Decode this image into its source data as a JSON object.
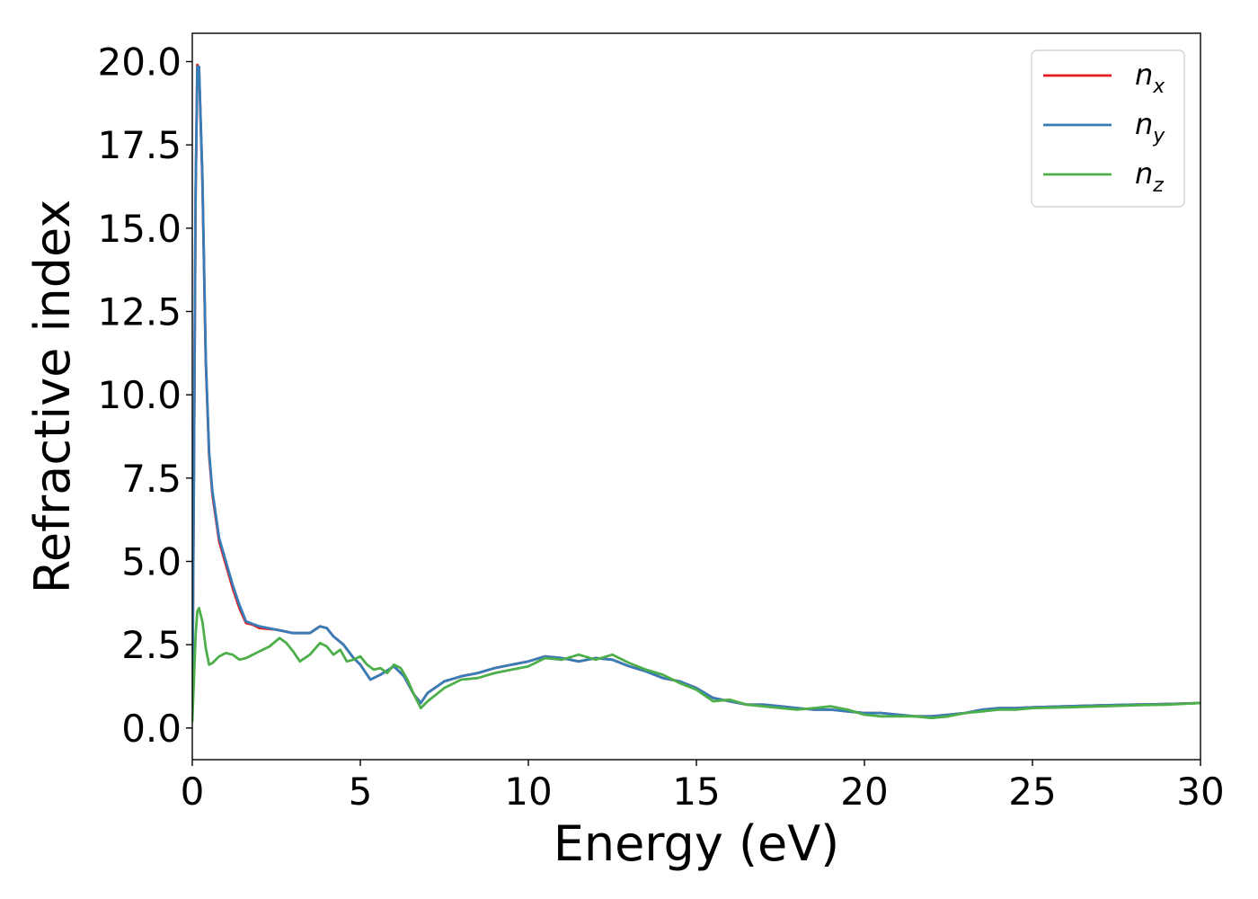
{
  "chart_data": {
    "type": "line",
    "title": "",
    "xlabel": "Energy (eV)",
    "ylabel": "Refractive index",
    "xlim": [
      0,
      30
    ],
    "ylim": [
      -0.95,
      20.85
    ],
    "xticks": [
      0,
      5,
      10,
      15,
      20,
      25,
      30
    ],
    "xtick_labels": [
      "0",
      "5",
      "10",
      "15",
      "20",
      "25",
      "30"
    ],
    "yticks": [
      0.0,
      2.5,
      5.0,
      7.5,
      10.0,
      12.5,
      15.0,
      17.5,
      20.0
    ],
    "ytick_labels": [
      "0.0",
      "2.5",
      "5.0",
      "7.5",
      "10.0",
      "12.5",
      "15.0",
      "17.5",
      "20.0"
    ],
    "grid": false,
    "legend_position": "top-right",
    "series": [
      {
        "name": "n_x",
        "legend": {
          "base": "n",
          "sub": "x"
        },
        "color": "#e41a1c",
        "x": [
          0,
          0.05,
          0.1,
          0.15,
          0.2,
          0.3,
          0.4,
          0.5,
          0.6,
          0.8,
          1.0,
          1.2,
          1.4,
          1.6,
          1.8,
          2.0,
          2.5,
          3.0,
          3.5,
          3.8,
          4.0,
          4.2,
          4.5,
          4.8,
          5.0,
          5.3,
          5.6,
          6.0,
          6.3,
          6.6,
          6.8,
          7.0,
          7.5,
          8.0,
          8.5,
          9.0,
          9.5,
          10.0,
          10.5,
          11.0,
          11.5,
          12.0,
          12.5,
          13.0,
          13.5,
          14.0,
          14.5,
          15.0,
          15.5,
          16.0,
          16.5,
          17.0,
          17.5,
          18.0,
          18.5,
          19.0,
          19.5,
          20.0,
          20.5,
          21.0,
          21.5,
          22.0,
          22.5,
          23.0,
          23.5,
          24.0,
          24.5,
          25.0,
          26.0,
          27.0,
          28.0,
          29.0,
          30.0
        ],
        "y": [
          0.4,
          8.0,
          16.0,
          19.9,
          19.8,
          16.5,
          11.0,
          8.2,
          7.0,
          5.6,
          4.9,
          4.2,
          3.6,
          3.15,
          3.1,
          3.0,
          2.95,
          2.85,
          2.85,
          3.05,
          3.0,
          2.75,
          2.5,
          2.1,
          1.9,
          1.45,
          1.6,
          1.85,
          1.55,
          1.0,
          0.75,
          1.05,
          1.4,
          1.55,
          1.65,
          1.8,
          1.9,
          2.0,
          2.15,
          2.1,
          2.0,
          2.1,
          2.05,
          1.85,
          1.7,
          1.5,
          1.4,
          1.2,
          0.9,
          0.8,
          0.7,
          0.7,
          0.65,
          0.6,
          0.55,
          0.55,
          0.5,
          0.45,
          0.45,
          0.4,
          0.35,
          0.35,
          0.4,
          0.45,
          0.55,
          0.6,
          0.6,
          0.62,
          0.65,
          0.68,
          0.7,
          0.72,
          0.75
        ]
      },
      {
        "name": "n_y",
        "legend": {
          "base": "n",
          "sub": "y"
        },
        "color": "#377eb8",
        "x": [
          0,
          0.05,
          0.1,
          0.15,
          0.2,
          0.3,
          0.4,
          0.5,
          0.6,
          0.8,
          1.0,
          1.2,
          1.4,
          1.6,
          1.8,
          2.0,
          2.5,
          3.0,
          3.5,
          3.8,
          4.0,
          4.2,
          4.5,
          4.8,
          5.0,
          5.3,
          5.6,
          6.0,
          6.3,
          6.6,
          6.8,
          7.0,
          7.5,
          8.0,
          8.5,
          9.0,
          9.5,
          10.0,
          10.5,
          11.0,
          11.5,
          12.0,
          12.5,
          13.0,
          13.5,
          14.0,
          14.5,
          15.0,
          15.5,
          16.0,
          16.5,
          17.0,
          17.5,
          18.0,
          18.5,
          19.0,
          19.5,
          20.0,
          20.5,
          21.0,
          21.5,
          22.0,
          22.5,
          23.0,
          23.5,
          24.0,
          24.5,
          25.0,
          26.0,
          27.0,
          28.0,
          29.0,
          30.0
        ],
        "y": [
          0.4,
          8.1,
          16.2,
          19.85,
          19.85,
          16.6,
          11.1,
          8.3,
          7.1,
          5.7,
          5.0,
          4.3,
          3.7,
          3.2,
          3.12,
          3.05,
          2.95,
          2.85,
          2.85,
          3.05,
          3.0,
          2.75,
          2.5,
          2.1,
          1.9,
          1.45,
          1.6,
          1.85,
          1.55,
          1.0,
          0.75,
          1.05,
          1.4,
          1.55,
          1.65,
          1.8,
          1.9,
          2.0,
          2.15,
          2.1,
          2.0,
          2.1,
          2.05,
          1.85,
          1.7,
          1.5,
          1.4,
          1.2,
          0.9,
          0.8,
          0.7,
          0.7,
          0.65,
          0.6,
          0.55,
          0.55,
          0.5,
          0.45,
          0.45,
          0.4,
          0.35,
          0.35,
          0.4,
          0.45,
          0.55,
          0.6,
          0.6,
          0.62,
          0.65,
          0.68,
          0.7,
          0.72,
          0.75
        ]
      },
      {
        "name": "n_z",
        "legend": {
          "base": "n",
          "sub": "z"
        },
        "color": "#4daf4a",
        "x": [
          0,
          0.05,
          0.1,
          0.15,
          0.2,
          0.3,
          0.4,
          0.5,
          0.6,
          0.8,
          1.0,
          1.2,
          1.4,
          1.6,
          1.8,
          2.0,
          2.3,
          2.6,
          2.8,
          3.0,
          3.2,
          3.5,
          3.8,
          4.0,
          4.2,
          4.4,
          4.6,
          4.8,
          5.0,
          5.2,
          5.4,
          5.6,
          5.8,
          6.0,
          6.2,
          6.4,
          6.6,
          6.8,
          7.0,
          7.5,
          8.0,
          8.5,
          9.0,
          9.5,
          10.0,
          10.5,
          11.0,
          11.5,
          12.0,
          12.5,
          13.0,
          13.5,
          14.0,
          14.5,
          15.0,
          15.5,
          16.0,
          16.5,
          17.0,
          17.5,
          18.0,
          18.5,
          19.0,
          19.5,
          20.0,
          20.5,
          21.0,
          21.5,
          22.0,
          22.5,
          23.0,
          23.5,
          24.0,
          24.5,
          25.0,
          26.0,
          27.0,
          28.0,
          29.0,
          30.0
        ],
        "y": [
          0.2,
          1.5,
          2.8,
          3.5,
          3.6,
          3.2,
          2.4,
          1.9,
          1.95,
          2.15,
          2.25,
          2.2,
          2.05,
          2.1,
          2.2,
          2.3,
          2.45,
          2.7,
          2.55,
          2.3,
          2.0,
          2.2,
          2.55,
          2.45,
          2.2,
          2.35,
          2.0,
          2.05,
          2.15,
          1.9,
          1.75,
          1.8,
          1.65,
          1.9,
          1.8,
          1.45,
          1.0,
          0.6,
          0.8,
          1.2,
          1.45,
          1.5,
          1.65,
          1.75,
          1.85,
          2.1,
          2.05,
          2.2,
          2.05,
          2.2,
          1.95,
          1.75,
          1.6,
          1.35,
          1.15,
          0.8,
          0.85,
          0.7,
          0.65,
          0.6,
          0.55,
          0.6,
          0.65,
          0.55,
          0.4,
          0.35,
          0.35,
          0.35,
          0.3,
          0.35,
          0.45,
          0.5,
          0.55,
          0.55,
          0.6,
          0.62,
          0.65,
          0.68,
          0.7,
          0.75
        ]
      }
    ]
  }
}
